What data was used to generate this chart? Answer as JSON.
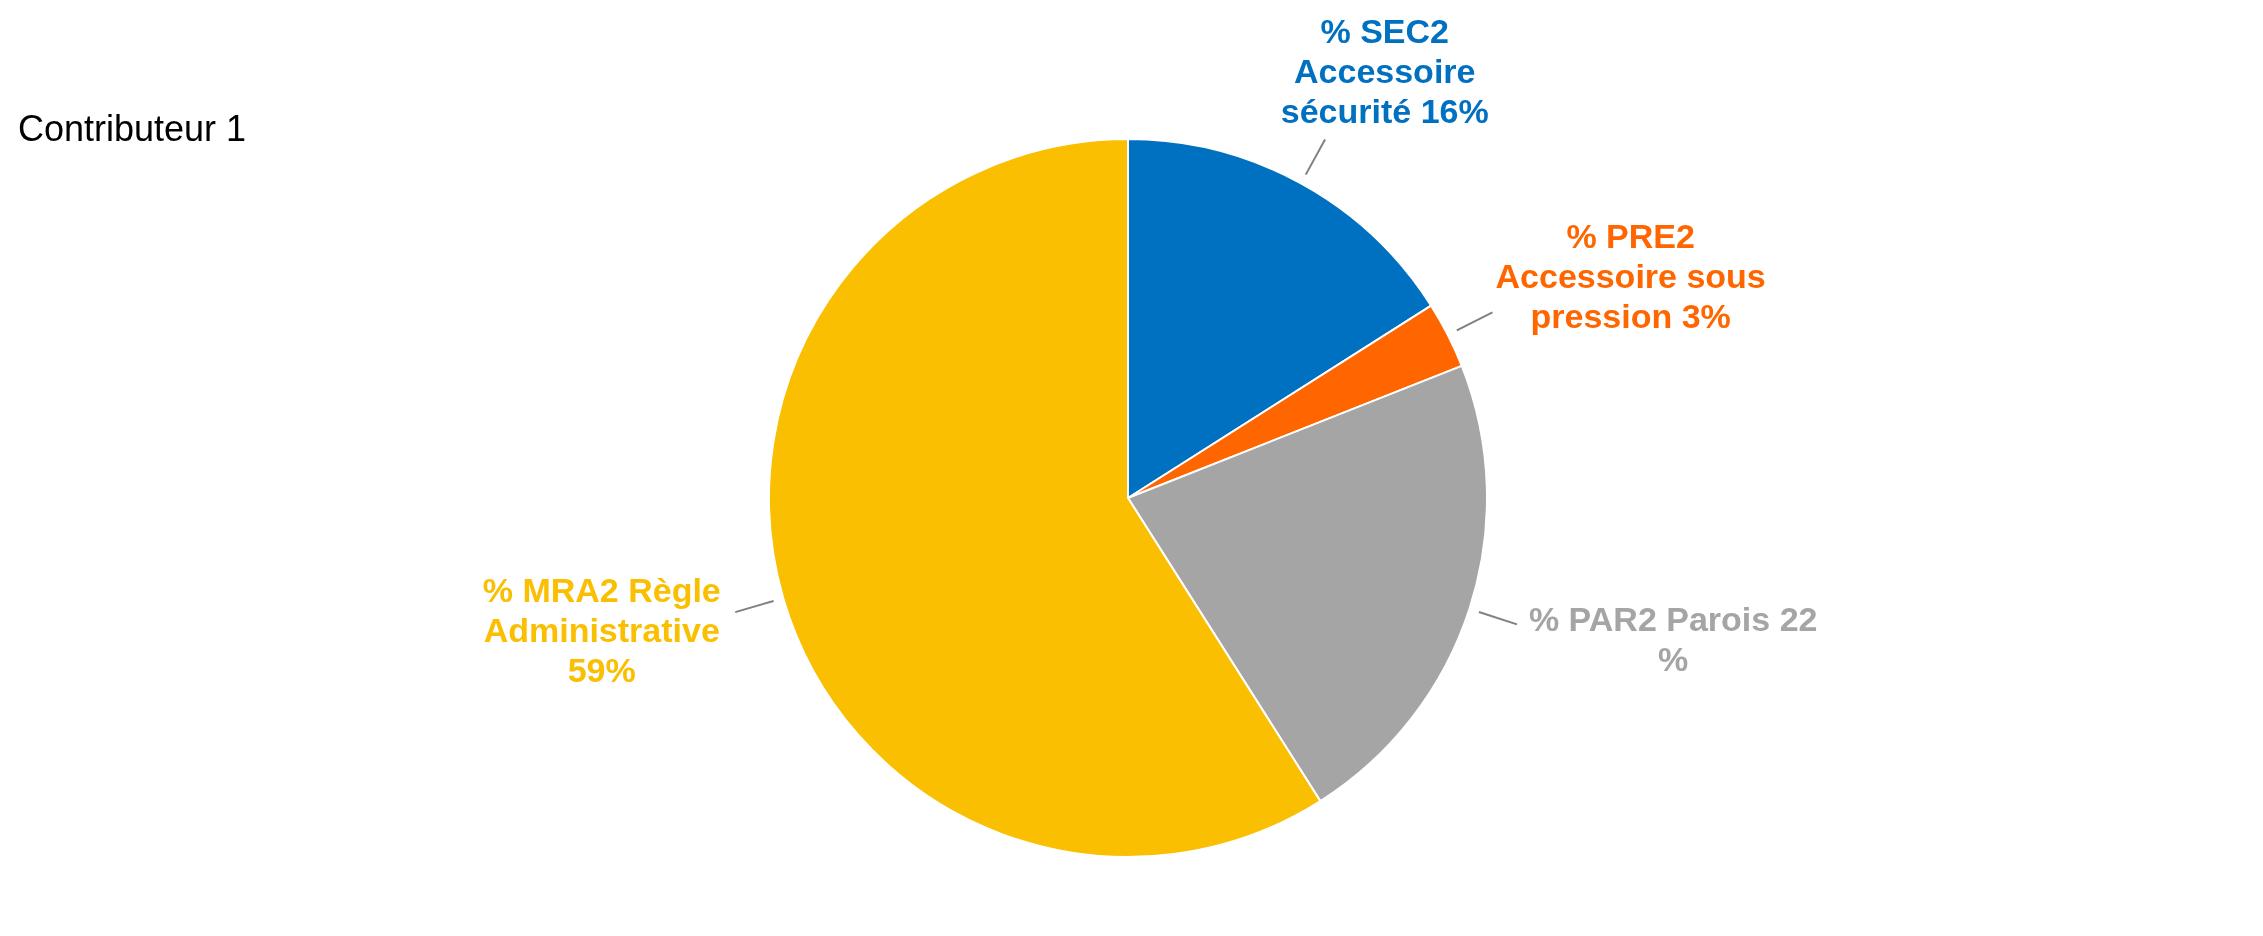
{
  "chart_data": {
    "type": "pie",
    "title": "Contributeur 1",
    "categories": [
      "% SEC2 Accessoire sécurité",
      "% PRE2 Accessoire sous pression",
      "% PAR2 Parois",
      "% MRA2 Règle Administrative"
    ],
    "values": [
      16,
      3,
      22,
      59
    ],
    "value_labels": [
      "16%",
      "3%",
      "22 %",
      "59%"
    ],
    "colors": [
      "#0070c0",
      "#ff6600",
      "#a5a5a5",
      "#f9bf00"
    ],
    "legend": false
  }
}
